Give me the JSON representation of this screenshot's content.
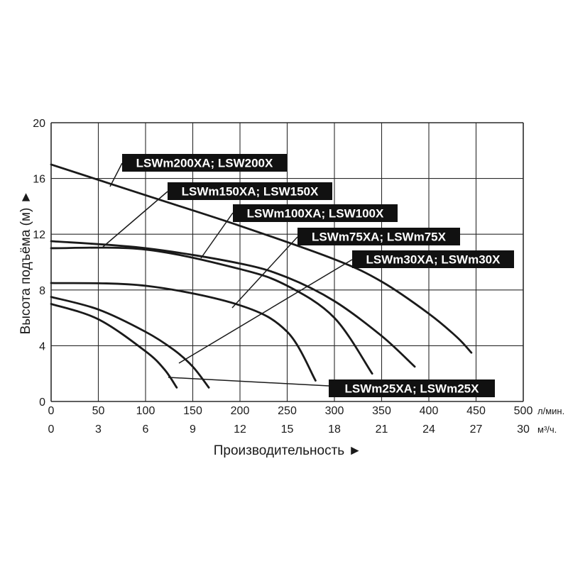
{
  "chart_data": {
    "type": "line",
    "xlabel": "Производительность ►",
    "ylabel": "Высота подъёма (м) ►",
    "ylim": [
      0,
      20
    ],
    "yticks": [
      "0",
      "4",
      "8",
      "12",
      "16",
      "20"
    ],
    "x_primary": {
      "unit": "л/мин.",
      "range": [
        0,
        500
      ],
      "ticks": [
        "0",
        "50",
        "100",
        "150",
        "200",
        "250",
        "300",
        "350",
        "400",
        "450",
        "500"
      ]
    },
    "x_secondary": {
      "unit": "м³/ч.",
      "range": [
        0,
        30
      ],
      "ticks": [
        "0",
        "3",
        "6",
        "9",
        "12",
        "15",
        "18",
        "21",
        "24",
        "27",
        "30"
      ]
    },
    "grid": true,
    "series": [
      {
        "name": "LSWm200XA; LSW200X",
        "x": [
          0,
          100,
          200,
          300,
          350,
          400,
          430,
          445
        ],
        "y": [
          17,
          14.8,
          12.6,
          10.2,
          8.6,
          6.3,
          4.6,
          3.5
        ]
      },
      {
        "name": "LSWm150XA; LSW150X",
        "x": [
          0,
          100,
          200,
          250,
          300,
          350,
          385
        ],
        "y": [
          11.5,
          11.0,
          9.9,
          8.9,
          7.2,
          4.7,
          2.5
        ]
      },
      {
        "name": "LSWm100XA; LSW100X",
        "x": [
          0,
          100,
          200,
          250,
          300,
          340
        ],
        "y": [
          11.0,
          10.9,
          9.5,
          8.3,
          6.0,
          2.0
        ]
      },
      {
        "name": "LSWm75XA; LSWm75X",
        "x": [
          0,
          100,
          200,
          250,
          280
        ],
        "y": [
          8.5,
          8.3,
          6.9,
          5.0,
          1.5
        ]
      },
      {
        "name": "LSWm30XA; LSWm30X",
        "x": [
          0,
          50,
          100,
          130,
          150,
          167
        ],
        "y": [
          7.5,
          6.6,
          5.0,
          3.7,
          2.5,
          1.0
        ]
      },
      {
        "name": "LSWm25XA; LSWm25X",
        "x": [
          0,
          50,
          100,
          120,
          133
        ],
        "y": [
          7.0,
          5.9,
          3.6,
          2.3,
          1.0
        ]
      }
    ],
    "annotations": [
      {
        "text": "LSWm200XA; LSW200X",
        "target_series": 0
      },
      {
        "text": "LSWm150XA; LSW150X",
        "target_series": 1
      },
      {
        "text": "LSWm100XA; LSW100X",
        "target_series": 2
      },
      {
        "text": "LSWm75XA; LSWm75X",
        "target_series": 3
      },
      {
        "text": "LSWm30XA; LSWm30X",
        "target_series": 4
      },
      {
        "text": "LSWm25XA; LSWm25X",
        "target_series": 5
      }
    ]
  }
}
